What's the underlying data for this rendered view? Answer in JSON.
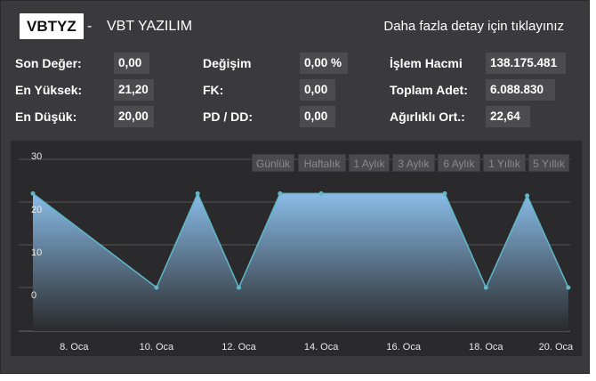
{
  "header": {
    "ticker": "VBTYZ",
    "separator": "-",
    "company": "VBT YAZILIM",
    "detail_link": "Daha fazla detay için tıklayınız"
  },
  "stats": {
    "last_value": {
      "label": "Son Değer:",
      "value": "0,00"
    },
    "high": {
      "label": "En Yüksek:",
      "value": "21,20"
    },
    "low": {
      "label": "En Düşük:",
      "value": "20,00"
    },
    "change": {
      "label": "Değişim",
      "value": "0,00 %"
    },
    "pe": {
      "label": "FK:",
      "value": "0,00"
    },
    "pb": {
      "label": "PD / DD:",
      "value": "0,00"
    },
    "volume": {
      "label": "İşlem Hacmi",
      "value": "138.175.481"
    },
    "total_count": {
      "label": "Toplam Adet:",
      "value": "6.088.830"
    },
    "weighted_avg": {
      "label": "Ağırlıklı Ort.:",
      "value": "22,64"
    }
  },
  "range_buttons": [
    "Günlük",
    "Haftalık",
    "1 Aylık",
    "3 Aylık",
    "6 Aylık",
    "1 Yıllık",
    "5 Yıllık"
  ],
  "colors": {
    "background": "#3a3a3c",
    "chart_background": "#2a2a2c",
    "area_top": "#8ec4f2",
    "area_bottom": "#2a2a2c",
    "line": "#5fb8c8"
  },
  "chart_data": {
    "type": "area",
    "x": [
      "7 Oca",
      "10 Oca",
      "11 Oca",
      "12 Oca",
      "13 Oca",
      "14 Oca",
      "17 Oca",
      "18 Oca",
      "19 Oca",
      "20 Oca"
    ],
    "values": [
      22,
      0,
      22,
      0,
      22,
      22,
      22,
      0,
      21.5,
      0
    ],
    "x_tick_labels": [
      "8. Oca",
      "10. Oca",
      "12. Oca",
      "14. Oca",
      "16. Oca",
      "18. Oca",
      "20. Oca"
    ],
    "y_tick_labels": [
      "0",
      "10",
      "20",
      "30"
    ],
    "ylim": [
      0,
      30
    ],
    "grid": true,
    "title": "",
    "xlabel": "",
    "ylabel": ""
  }
}
